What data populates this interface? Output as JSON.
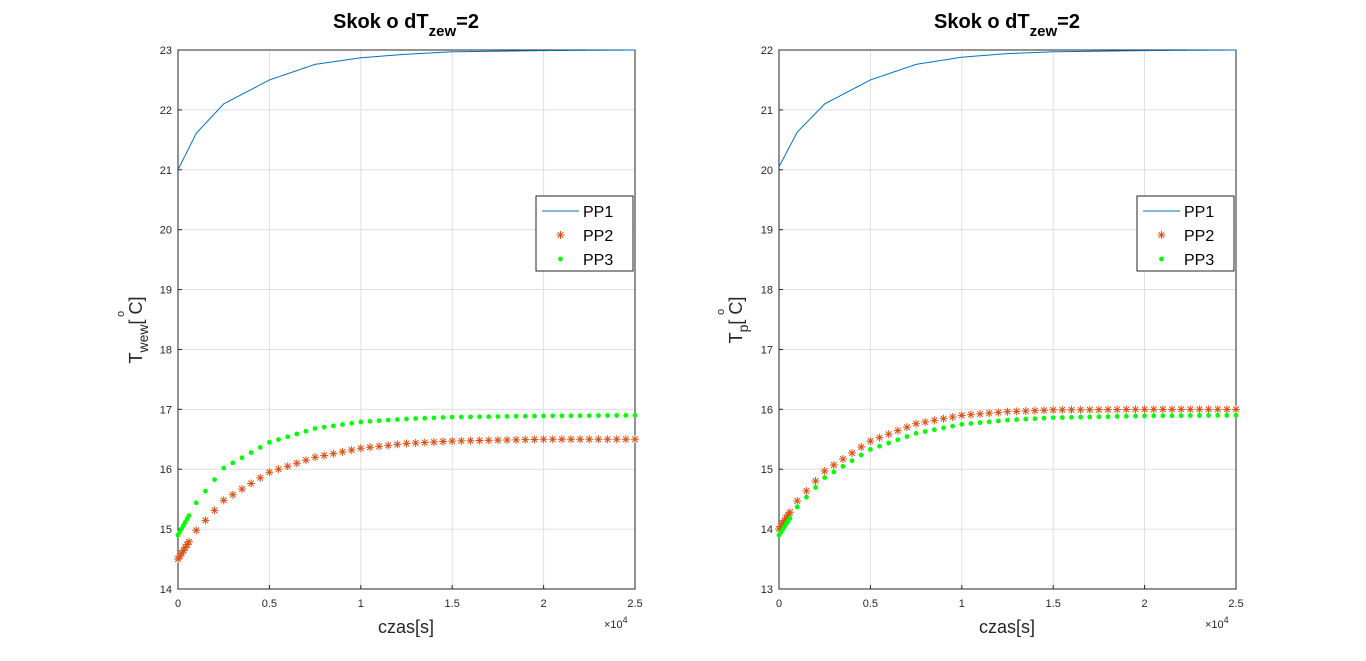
{
  "chart_data": [
    {
      "type": "line",
      "title": "Skok o dT",
      "title_subscript": "zew",
      "title_suffix": "=2",
      "xlabel": "czas[s]",
      "ylabel": "T",
      "ylabel_subscript": "wew",
      "ylabel_suffix": "[ C]",
      "ylabel_degree": "o",
      "x_exponent_base": "×10",
      "x_exponent_power": "4",
      "xlim": [
        0,
        25000
      ],
      "ylim": [
        14,
        23
      ],
      "x_ticks": [
        0,
        5000,
        10000,
        15000,
        20000,
        25000
      ],
      "x_tick_labels": [
        "0",
        "0.5",
        "1",
        "1.5",
        "2",
        "2.5"
      ],
      "y_ticks": [
        14,
        15,
        16,
        17,
        18,
        19,
        20,
        21,
        22,
        23
      ],
      "y_tick_labels": [
        "14",
        "15",
        "16",
        "17",
        "18",
        "19",
        "20",
        "21",
        "22",
        "23"
      ],
      "grid": true,
      "legend_position": "right",
      "series": [
        {
          "name": "PP1",
          "style": "line",
          "color": "#0072BD",
          "x": [
            0,
            1000,
            2500,
            5000,
            7500,
            10000,
            12500,
            15000,
            20000,
            25000
          ],
          "y": [
            21.0,
            21.61,
            22.1,
            22.5,
            22.76,
            22.87,
            22.93,
            22.97,
            22.99,
            23.0
          ]
        },
        {
          "name": "PP2",
          "style": "star",
          "color": "#D95319",
          "x": [
            0,
            1000,
            2500,
            5000,
            7500,
            10000,
            12500,
            15000,
            20000,
            25000
          ],
          "y": [
            14.5,
            14.98,
            15.48,
            15.95,
            16.2,
            16.35,
            16.43,
            16.47,
            16.5,
            16.5
          ]
        },
        {
          "name": "PP3",
          "style": "dot",
          "color": "#00FF00",
          "x": [
            0,
            1000,
            2500,
            5000,
            7500,
            10000,
            12500,
            15000,
            20000,
            25000
          ],
          "y": [
            14.9,
            15.44,
            16.02,
            16.45,
            16.68,
            16.79,
            16.84,
            16.87,
            16.89,
            16.9
          ]
        }
      ]
    },
    {
      "type": "line",
      "title": "Skok o dT",
      "title_subscript": "zew",
      "title_suffix": "=2",
      "xlabel": "czas[s]",
      "ylabel": "T",
      "ylabel_subscript": "p",
      "ylabel_suffix": "[ C]",
      "ylabel_degree": "o",
      "x_exponent_base": "×10",
      "x_exponent_power": "4",
      "xlim": [
        0,
        25000
      ],
      "ylim": [
        13,
        22
      ],
      "x_ticks": [
        0,
        5000,
        10000,
        15000,
        20000,
        25000
      ],
      "x_tick_labels": [
        "0",
        "0.5",
        "1",
        "1.5",
        "2",
        "2.5"
      ],
      "y_ticks": [
        13,
        14,
        15,
        16,
        17,
        18,
        19,
        20,
        21,
        22
      ],
      "y_tick_labels": [
        "13",
        "14",
        "15",
        "16",
        "17",
        "18",
        "19",
        "20",
        "21",
        "22"
      ],
      "grid": true,
      "legend_position": "right",
      "series": [
        {
          "name": "PP1",
          "style": "line",
          "color": "#0072BD",
          "x": [
            0,
            1000,
            2500,
            5000,
            7500,
            10000,
            12500,
            15000,
            20000,
            25000
          ],
          "y": [
            20.05,
            20.63,
            21.1,
            21.5,
            21.76,
            21.88,
            21.94,
            21.97,
            21.99,
            22.0
          ]
        },
        {
          "name": "PP2",
          "style": "star",
          "color": "#D95319",
          "x": [
            0,
            1000,
            2500,
            5000,
            7500,
            10000,
            12500,
            15000,
            20000,
            25000
          ],
          "y": [
            14.0,
            14.47,
            14.97,
            15.47,
            15.76,
            15.9,
            15.96,
            15.99,
            16.0,
            16.0
          ]
        },
        {
          "name": "PP3",
          "style": "dot",
          "color": "#00FF00",
          "x": [
            0,
            1000,
            2500,
            5000,
            7500,
            10000,
            12500,
            15000,
            20000,
            25000
          ],
          "y": [
            13.9,
            14.37,
            14.86,
            15.33,
            15.6,
            15.75,
            15.82,
            15.86,
            15.89,
            15.9
          ]
        }
      ]
    }
  ]
}
